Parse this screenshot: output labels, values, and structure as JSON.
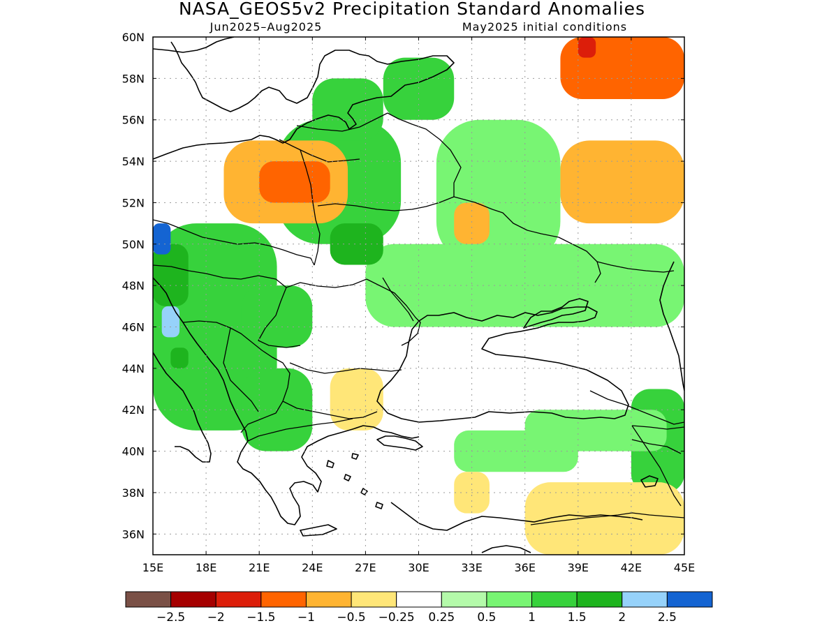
{
  "title": "NASA_GEOS5v2 Precipitation Standard Anomalies",
  "period": "Jun2025–Aug2025",
  "init_conditions": "May2025 initial conditions",
  "x_ticks": [
    "15E",
    "18E",
    "21E",
    "24E",
    "27E",
    "30E",
    "33E",
    "36E",
    "39E",
    "42E",
    "45E"
  ],
  "y_ticks": [
    "60N",
    "58N",
    "56N",
    "54N",
    "52N",
    "50N",
    "48N",
    "46N",
    "44N",
    "42N",
    "40N",
    "38N",
    "36N"
  ],
  "colorbar": {
    "colors": [
      "#7a5046",
      "#a50000",
      "#dc1e0a",
      "#ff6400",
      "#ffb432",
      "#ffe678",
      "#ffffff",
      "#b4faaa",
      "#78f573",
      "#37d23c",
      "#1eb41e",
      "#96d2fa",
      "#1464d2"
    ],
    "labels": [
      "−2.5",
      "−2",
      "−1.5",
      "−1",
      "−0.5",
      "−0.25",
      "0.25",
      "0.5",
      "1",
      "1.5",
      "2",
      "2.5"
    ]
  },
  "map": {
    "lon_range": [
      15,
      45
    ],
    "lat_range": [
      35,
      60
    ],
    "anomaly_cells": [
      {
        "lon": [
          31,
          38
        ],
        "lat": [
          49,
          56
        ],
        "value": 1.0
      },
      {
        "lon": [
          27,
          45
        ],
        "lat": [
          46,
          50
        ],
        "value": 1.0
      },
      {
        "lon": [
          22,
          29
        ],
        "lat": [
          50,
          56
        ],
        "value": 1.2
      },
      {
        "lon": [
          15,
          22
        ],
        "lat": [
          41,
          51
        ],
        "value": 1.2
      },
      {
        "lon": [
          20,
          24
        ],
        "lat": [
          45,
          48
        ],
        "value": 1.3
      },
      {
        "lon": [
          25,
          28
        ],
        "lat": [
          49,
          51
        ],
        "value": 1.6
      },
      {
        "lon": [
          15,
          17
        ],
        "lat": [
          47,
          50
        ],
        "value": 1.7
      },
      {
        "lon": [
          24,
          28
        ],
        "lat": [
          55,
          58
        ],
        "value": 1.1
      },
      {
        "lon": [
          28,
          32
        ],
        "lat": [
          56,
          59
        ],
        "value": 1.5
      },
      {
        "lon": [
          42,
          45
        ],
        "lat": [
          38,
          43
        ],
        "value": 1.3
      },
      {
        "lon": [
          32,
          39
        ],
        "lat": [
          39,
          41
        ],
        "value": 0.9
      },
      {
        "lon": [
          36,
          44
        ],
        "lat": [
          40,
          42
        ],
        "value": 1.0
      },
      {
        "lon": [
          20,
          24
        ],
        "lat": [
          40,
          44
        ],
        "value": 1.4
      },
      {
        "lon": [
          15,
          16
        ],
        "lat": [
          49.5,
          51
        ],
        "value": 2.6
      },
      {
        "lon": [
          15.5,
          16.5
        ],
        "lat": [
          45.5,
          47
        ],
        "value": 2.1
      },
      {
        "lon": [
          16,
          17
        ],
        "lat": [
          44,
          45
        ],
        "value": 2.0
      },
      {
        "lon": [
          19,
          26
        ],
        "lat": [
          51,
          55
        ],
        "value": -0.7
      },
      {
        "lon": [
          21,
          25
        ],
        "lat": [
          52,
          54
        ],
        "value": -1.2
      },
      {
        "lon": [
          38,
          45
        ],
        "lat": [
          57,
          60
        ],
        "value": -1.1
      },
      {
        "lon": [
          39,
          40
        ],
        "lat": [
          59,
          60
        ],
        "value": -1.6
      },
      {
        "lon": [
          38,
          45
        ],
        "lat": [
          51,
          55
        ],
        "value": -0.6
      },
      {
        "lon": [
          32,
          34
        ],
        "lat": [
          50,
          52
        ],
        "value": -0.5
      },
      {
        "lon": [
          25,
          28
        ],
        "lat": [
          41,
          44
        ],
        "value": -0.4
      },
      {
        "lon": [
          36,
          45
        ],
        "lat": [
          35,
          38.5
        ],
        "value": -0.4
      },
      {
        "lon": [
          32,
          34
        ],
        "lat": [
          37,
          39
        ],
        "value": -0.4
      }
    ]
  }
}
